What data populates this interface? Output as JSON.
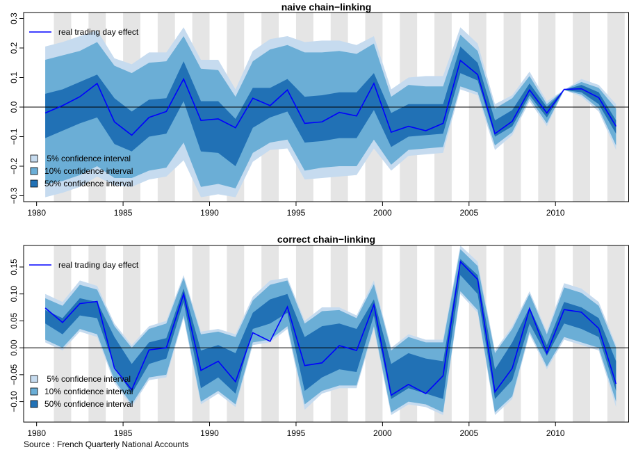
{
  "chart_data": [
    {
      "type": "area",
      "title": "naive chain−linking",
      "xlim": [
        1979.25,
        2014.25
      ],
      "ylim": [
        -0.32,
        0.32
      ],
      "x_ticks": [
        1980,
        1985,
        1990,
        1995,
        2000,
        2005,
        2010
      ],
      "x_tick_labels": [
        "1980",
        "1985",
        "1990",
        "1995",
        "2000",
        "2005",
        "2010"
      ],
      "y_ticks": [
        -0.3,
        -0.2,
        -0.1,
        0.0,
        0.1,
        0.2,
        0.3
      ],
      "y_tick_labels": [
        "−0.3",
        "−0.2",
        "−0.1",
        "0.0",
        "0.1",
        "0.2",
        "0.3"
      ],
      "x": [
        1980.5,
        1981.5,
        1982.5,
        1983.5,
        1984.5,
        1985.5,
        1986.5,
        1987.5,
        1988.5,
        1989.5,
        1990.5,
        1991.5,
        1992.5,
        1993.5,
        1994.5,
        1995.5,
        1996.5,
        1997.5,
        1998.5,
        1999.5,
        2000.5,
        2001.5,
        2002.5,
        2003.5,
        2004.5,
        2005.5,
        2006.5,
        2007.5,
        2008.5,
        2009.5,
        2010.5,
        2011.5,
        2012.5,
        2013.5
      ],
      "series": [
        {
          "name": "real trading day effect",
          "color": "#0000ff",
          "values": [
            -0.02,
            0.005,
            0.035,
            0.08,
            -0.05,
            -0.095,
            -0.035,
            -0.015,
            0.095,
            -0.045,
            -0.04,
            -0.07,
            0.03,
            0.005,
            0.058,
            -0.055,
            -0.05,
            -0.018,
            -0.03,
            0.08,
            -0.085,
            -0.065,
            -0.08,
            -0.055,
            0.158,
            0.11,
            -0.09,
            -0.048,
            0.058,
            -0.02,
            0.06,
            0.062,
            0.032,
            -0.065
          ]
        }
      ],
      "bands": [
        {
          "name": "5% confidence interval",
          "color": "#c6dbef",
          "lower": [
            -0.305,
            -0.29,
            -0.27,
            -0.235,
            -0.265,
            -0.27,
            -0.245,
            -0.235,
            -0.18,
            -0.305,
            -0.295,
            -0.305,
            -0.185,
            -0.145,
            -0.14,
            -0.245,
            -0.24,
            -0.235,
            -0.23,
            -0.14,
            -0.215,
            -0.165,
            -0.16,
            -0.155,
            0.06,
            0.04,
            -0.145,
            -0.095,
            0.02,
            -0.065,
            0.058,
            0.035,
            -0.015,
            -0.145
          ],
          "upper": [
            0.205,
            0.22,
            0.24,
            0.26,
            0.165,
            0.145,
            0.185,
            0.185,
            0.27,
            0.16,
            0.16,
            0.06,
            0.19,
            0.23,
            0.24,
            0.22,
            0.225,
            0.225,
            0.21,
            0.24,
            0.06,
            0.1,
            0.105,
            0.105,
            0.27,
            0.215,
            0.01,
            0.04,
            0.12,
            0.02,
            0.058,
            0.095,
            0.075,
            0.01
          ]
        },
        {
          "name": "10% confidence interval",
          "color": "#6baed6",
          "lower": [
            -0.26,
            -0.25,
            -0.23,
            -0.2,
            -0.24,
            -0.24,
            -0.215,
            -0.205,
            -0.12,
            -0.27,
            -0.26,
            -0.275,
            -0.155,
            -0.12,
            -0.11,
            -0.215,
            -0.205,
            -0.2,
            -0.2,
            -0.11,
            -0.195,
            -0.145,
            -0.14,
            -0.135,
            0.07,
            0.05,
            -0.13,
            -0.085,
            0.03,
            -0.055,
            0.058,
            0.042,
            -0.005,
            -0.13
          ],
          "upper": [
            0.16,
            0.175,
            0.19,
            0.22,
            0.14,
            0.115,
            0.15,
            0.155,
            0.24,
            0.13,
            0.125,
            0.035,
            0.155,
            0.195,
            0.21,
            0.185,
            0.185,
            0.19,
            0.18,
            0.215,
            0.035,
            0.075,
            0.07,
            0.07,
            0.245,
            0.19,
            -0.005,
            0.03,
            0.105,
            0.01,
            0.058,
            0.085,
            0.065,
            -0.005
          ]
        },
        {
          "name": "50% confidence interval",
          "color": "#2171b5",
          "lower": [
            -0.105,
            -0.08,
            -0.055,
            -0.035,
            -0.125,
            -0.15,
            -0.1,
            -0.09,
            0.02,
            -0.15,
            -0.155,
            -0.2,
            -0.07,
            -0.035,
            -0.015,
            -0.12,
            -0.115,
            -0.105,
            -0.105,
            -0.01,
            -0.135,
            -0.1,
            -0.095,
            -0.09,
            0.115,
            0.09,
            -0.1,
            -0.065,
            0.04,
            -0.035,
            0.058,
            0.05,
            0.01,
            -0.09
          ],
          "upper": [
            0.045,
            0.06,
            0.085,
            0.11,
            0.03,
            -0.015,
            0.025,
            0.03,
            0.155,
            0.02,
            0.02,
            -0.04,
            0.065,
            0.065,
            0.095,
            0.035,
            0.04,
            0.05,
            0.05,
            0.115,
            -0.02,
            0.01,
            0.01,
            0.01,
            0.205,
            0.15,
            -0.045,
            -0.01,
            0.08,
            0.0,
            0.058,
            0.075,
            0.05,
            -0.045
          ]
        }
      ],
      "legend": {
        "position": "top-left",
        "line_label": "real trading day effect",
        "band_labels": [
          " 5% confidence interval",
          "10% confidence interval",
          "50% confidence interval"
        ],
        "band_position": "bottom-left"
      },
      "grid": false,
      "shading": "alternate years shaded grey",
      "zero_line": true
    },
    {
      "type": "area",
      "title": "correct chain−linking",
      "xlim": [
        1979.25,
        2014.25
      ],
      "ylim": [
        -0.138,
        0.19
      ],
      "x_ticks": [
        1980,
        1985,
        1990,
        1995,
        2000,
        2005,
        2010
      ],
      "x_tick_labels": [
        "1980",
        "1985",
        "1990",
        "1995",
        "2000",
        "2005",
        "2010"
      ],
      "y_ticks": [
        -0.1,
        -0.05,
        0.0,
        0.05,
        0.1,
        0.15
      ],
      "y_tick_labels": [
        "−0.10",
        "−0.05",
        "0.00",
        "0.05",
        "0.10",
        "0.15"
      ],
      "x": [
        1980.5,
        1981.5,
        1982.5,
        1983.5,
        1984.5,
        1985.5,
        1986.5,
        1987.5,
        1988.5,
        1989.5,
        1990.5,
        1991.5,
        1992.5,
        1993.5,
        1994.5,
        1995.5,
        1996.5,
        1997.5,
        1998.5,
        1999.5,
        2000.5,
        2001.5,
        2002.5,
        2003.5,
        2004.5,
        2005.5,
        2006.5,
        2007.5,
        2008.5,
        2009.5,
        2010.5,
        2011.5,
        2012.5,
        2013.5
      ],
      "series": [
        {
          "name": "real trading day effect",
          "color": "#0000ff",
          "values": [
            0.074,
            0.047,
            0.082,
            0.086,
            -0.038,
            -0.078,
            -0.004,
            0.0,
            0.1,
            -0.042,
            -0.025,
            -0.063,
            0.028,
            0.012,
            0.076,
            -0.033,
            -0.028,
            0.004,
            -0.005,
            0.08,
            -0.088,
            -0.068,
            -0.085,
            -0.052,
            0.16,
            0.127,
            -0.082,
            -0.038,
            0.073,
            -0.01,
            0.071,
            0.066,
            0.036,
            -0.067
          ]
        }
      ],
      "bands": [
        {
          "name": "5% confidence interval",
          "color": "#c6dbef",
          "lower": [
            0.01,
            -0.005,
            0.03,
            0.02,
            -0.065,
            -0.11,
            -0.06,
            -0.055,
            0.055,
            -0.105,
            -0.085,
            -0.11,
            0.005,
            0.01,
            0.035,
            -0.115,
            -0.085,
            -0.075,
            -0.075,
            0.035,
            -0.125,
            -0.105,
            -0.11,
            -0.125,
            0.1,
            0.065,
            -0.125,
            -0.095,
            0.025,
            -0.04,
            0.015,
            0.005,
            -0.005,
            -0.11
          ],
          "upper": [
            0.1,
            0.085,
            0.125,
            0.115,
            0.045,
            0.005,
            0.04,
            0.05,
            0.135,
            0.03,
            0.035,
            0.025,
            0.095,
            0.125,
            0.13,
            0.05,
            0.075,
            0.075,
            0.06,
            0.125,
            0.0,
            0.025,
            0.015,
            0.015,
            0.19,
            0.16,
            -0.005,
            0.04,
            0.105,
            0.03,
            0.12,
            0.11,
            0.085,
            0.005
          ]
        },
        {
          "name": "10% confidence interval",
          "color": "#6baed6",
          "lower": [
            0.015,
            0.0,
            0.035,
            0.025,
            -0.06,
            -0.105,
            -0.055,
            -0.05,
            0.06,
            -0.1,
            -0.08,
            -0.105,
            0.01,
            0.015,
            0.04,
            -0.105,
            -0.08,
            -0.07,
            -0.07,
            0.04,
            -0.12,
            -0.1,
            -0.105,
            -0.12,
            0.105,
            0.07,
            -0.12,
            -0.09,
            0.03,
            -0.035,
            0.02,
            0.01,
            0.0,
            -0.1
          ],
          "upper": [
            0.092,
            0.078,
            0.117,
            0.108,
            0.04,
            0.0,
            0.035,
            0.045,
            0.13,
            0.025,
            0.03,
            0.02,
            0.088,
            0.117,
            0.125,
            0.045,
            0.068,
            0.07,
            0.055,
            0.118,
            -0.005,
            0.02,
            0.01,
            0.01,
            0.183,
            0.152,
            -0.01,
            0.035,
            0.1,
            0.025,
            0.112,
            0.102,
            0.078,
            0.0
          ]
        },
        {
          "name": "50% confidence interval",
          "color": "#2171b5",
          "lower": [
            0.045,
            0.025,
            0.06,
            0.055,
            -0.035,
            -0.085,
            -0.03,
            -0.02,
            0.085,
            -0.075,
            -0.055,
            -0.085,
            0.035,
            0.045,
            0.065,
            -0.08,
            -0.055,
            -0.04,
            -0.045,
            0.06,
            -0.095,
            -0.075,
            -0.085,
            -0.095,
            0.135,
            0.1,
            -0.095,
            -0.06,
            0.045,
            -0.015,
            0.045,
            0.035,
            0.02,
            -0.08
          ],
          "upper": [
            0.07,
            0.055,
            0.092,
            0.085,
            0.02,
            -0.03,
            0.01,
            0.018,
            0.11,
            -0.005,
            0.005,
            -0.01,
            0.065,
            0.09,
            0.1,
            0.02,
            0.04,
            0.045,
            0.035,
            0.09,
            -0.03,
            -0.01,
            -0.02,
            -0.025,
            0.165,
            0.135,
            -0.04,
            0.01,
            0.075,
            0.005,
            0.085,
            0.075,
            0.055,
            -0.025
          ]
        }
      ],
      "legend": {
        "position": "top-left",
        "line_label": "real trading day effect",
        "band_labels": [
          " 5% confidence interval",
          "10% confidence interval",
          "50% confidence interval"
        ],
        "band_position": "bottom-left"
      },
      "grid": false,
      "shading": "alternate years shaded grey",
      "zero_line": true
    }
  ],
  "source_note": "Source : French Quarterly National Accounts"
}
